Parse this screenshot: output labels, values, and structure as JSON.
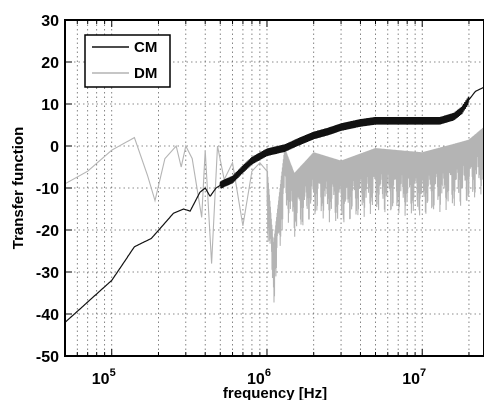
{
  "chart_data": {
    "type": "line",
    "title": "",
    "xlabel": "frequency [Hz]",
    "ylabel": "Transfer function",
    "xscale": "log",
    "xlim": [
      50000,
      25000000
    ],
    "ylim": [
      -50,
      30
    ],
    "x_ticks": [
      {
        "value": 100000,
        "base": "10",
        "exp": "5"
      },
      {
        "value": 1000000,
        "base": "10",
        "exp": "6"
      },
      {
        "value": 10000000,
        "base": "10",
        "exp": "7"
      }
    ],
    "y_ticks": [
      30,
      20,
      10,
      0,
      -10,
      -20,
      -30,
      -40,
      -50
    ],
    "grid": true,
    "legend_position": "top-left",
    "series": [
      {
        "name": "CM",
        "color": "#111111",
        "style": "solid-dense",
        "points": [
          [
            50000,
            -42
          ],
          [
            100000,
            -32
          ],
          [
            140000,
            -24
          ],
          [
            180000,
            -22
          ],
          [
            250000,
            -16
          ],
          [
            290000,
            -15
          ],
          [
            320000,
            -15.5
          ],
          [
            370000,
            -11
          ],
          [
            400000,
            -10
          ],
          [
            430000,
            -12
          ],
          [
            470000,
            -10
          ],
          [
            520000,
            -9
          ],
          [
            600000,
            -8
          ],
          [
            700000,
            -5.5
          ],
          [
            800000,
            -3.5
          ],
          [
            1000000,
            -1.5
          ],
          [
            1300000,
            -0.5
          ],
          [
            1600000,
            1
          ],
          [
            2000000,
            2.5
          ],
          [
            2500000,
            3.5
          ],
          [
            3000000,
            4.5
          ],
          [
            4000000,
            5.5
          ],
          [
            5000000,
            6
          ],
          [
            7000000,
            6
          ],
          [
            10000000,
            6
          ],
          [
            13000000,
            6
          ],
          [
            16000000,
            7
          ],
          [
            18000000,
            8.5
          ],
          [
            20000000,
            11
          ],
          [
            22000000,
            13
          ],
          [
            25000000,
            14
          ]
        ]
      },
      {
        "name": "DM",
        "color": "#b4b4b4",
        "style": "oscillating",
        "points": [
          [
            50000,
            -9
          ],
          [
            70000,
            -6
          ],
          [
            100000,
            -1
          ],
          [
            140000,
            2
          ],
          [
            170000,
            -7
          ],
          [
            190000,
            -13
          ],
          [
            220000,
            -3
          ],
          [
            260000,
            0
          ],
          [
            280000,
            -5
          ],
          [
            300000,
            0
          ],
          [
            330000,
            -3
          ],
          [
            380000,
            -17
          ],
          [
            400000,
            -1
          ],
          [
            440000,
            -28
          ],
          [
            480000,
            0
          ],
          [
            530000,
            -8
          ],
          [
            600000,
            -4
          ],
          [
            700000,
            -19
          ],
          [
            800000,
            -6
          ],
          [
            900000,
            -4
          ],
          [
            1000000,
            -6
          ],
          [
            1100000,
            -25
          ],
          [
            1300000,
            -2
          ],
          [
            1500000,
            -8
          ],
          [
            2000000,
            -3
          ],
          [
            3000000,
            -5
          ],
          [
            5000000,
            -2
          ],
          [
            10000000,
            -3
          ],
          [
            16000000,
            -1
          ],
          [
            20000000,
            0
          ],
          [
            25000000,
            3
          ]
        ]
      }
    ]
  }
}
